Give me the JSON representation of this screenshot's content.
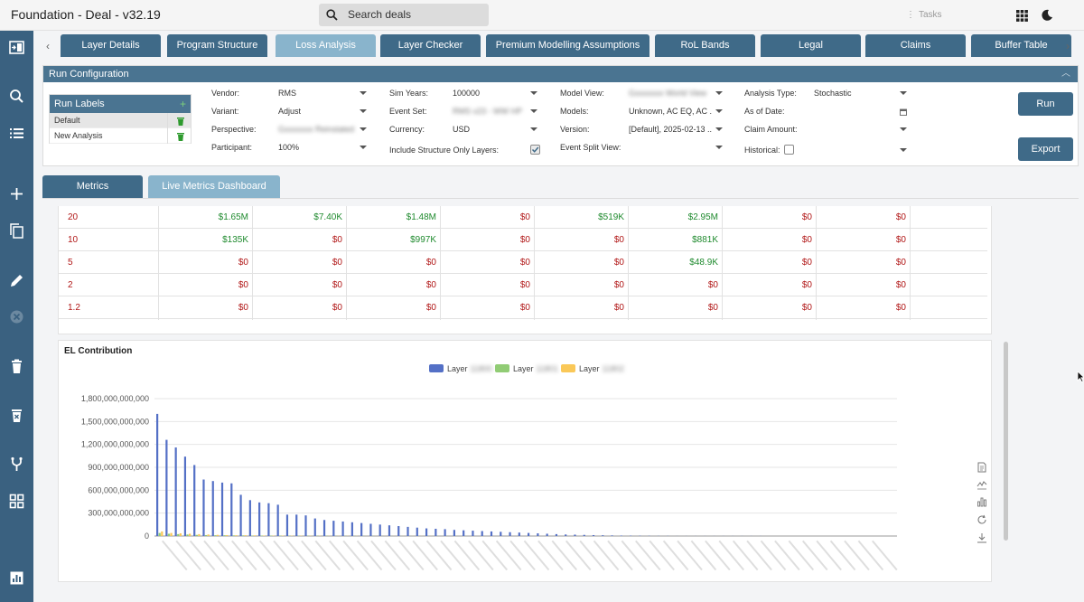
{
  "app": {
    "title": "Foundation - Deal - v32.19"
  },
  "search": {
    "placeholder": "Search deals"
  },
  "topbar": {
    "tasks_label": "Tasks"
  },
  "tabs": [
    {
      "label": "Layer Details",
      "active": false
    },
    {
      "label": "Program Structure",
      "active": false
    },
    {
      "label": "Loss Analysis",
      "active": true
    },
    {
      "label": "Layer Checker",
      "active": false
    },
    {
      "label": "Premium Modelling Assumptions",
      "active": false
    },
    {
      "label": "RoL Bands",
      "active": false
    },
    {
      "label": "Legal",
      "active": false
    },
    {
      "label": "Claims",
      "active": false
    },
    {
      "label": "Buffer Table",
      "active": false
    }
  ],
  "run_config": {
    "title": "Run Configuration",
    "run_labels": {
      "title": "Run Labels",
      "items": [
        {
          "label": "Default",
          "selected": true
        },
        {
          "label": "New Analysis",
          "selected": false
        }
      ]
    },
    "fields": {
      "vendor": {
        "label": "Vendor:",
        "value": "RMS"
      },
      "variant": {
        "label": "Variant:",
        "value": "Adjust"
      },
      "perspective": {
        "label": "Perspective:",
        "value": "Gxxxxxxx Reinstated"
      },
      "participant": {
        "label": "Participant:",
        "value": "100%"
      },
      "sim_years": {
        "label": "Sim Years:",
        "value": "100000"
      },
      "event_set": {
        "label": "Event Set:",
        "value": "RMS v23 - WW HP ..."
      },
      "currency": {
        "label": "Currency:",
        "value": "USD"
      },
      "include_structure": {
        "label": "Include Structure Only Layers:",
        "checked": true
      },
      "model_view": {
        "label": "Model View:",
        "value": "Gxxxxxxx World View"
      },
      "models": {
        "label": "Models:",
        "value": "Unknown, AC EQ, AC ..."
      },
      "version": {
        "label": "Version:",
        "value": "[Default], 2025-02-13 ..."
      },
      "event_split_view": {
        "label": "Event Split View:",
        "value": ""
      },
      "analysis_type": {
        "label": "Analysis Type:",
        "value": "Stochastic"
      },
      "as_of_date": {
        "label": "As of Date:",
        "value": ""
      },
      "claim_amount": {
        "label": "Claim Amount:",
        "value": ""
      },
      "historical": {
        "label": "Historical:",
        "checked": false
      }
    },
    "run_button": "Run",
    "export_button": "Export"
  },
  "subtabs": [
    {
      "label": "Metrics",
      "active": false
    },
    {
      "label": "Live Metrics Dashboard",
      "active": true
    }
  ],
  "colors": {
    "positive": "#1f8a2e",
    "negative": "#b01515",
    "accent": "#3f6a88",
    "accent_active": "#89b4cc"
  },
  "table": {
    "rows": [
      {
        "label": "20",
        "values": [
          "$1.65M",
          "$7.40K",
          "$1.48M",
          "$0",
          "$519K",
          "$2.95M",
          "$0",
          "$0"
        ],
        "positive": [
          true,
          true,
          true,
          false,
          true,
          true,
          false,
          false
        ]
      },
      {
        "label": "10",
        "values": [
          "$135K",
          "$0",
          "$997K",
          "$0",
          "$0",
          "$881K",
          "$0",
          "$0"
        ],
        "positive": [
          true,
          false,
          true,
          false,
          false,
          true,
          false,
          false
        ]
      },
      {
        "label": "5",
        "values": [
          "$0",
          "$0",
          "$0",
          "$0",
          "$0",
          "$48.9K",
          "$0",
          "$0"
        ],
        "positive": [
          false,
          false,
          false,
          false,
          false,
          true,
          false,
          false
        ]
      },
      {
        "label": "2",
        "values": [
          "$0",
          "$0",
          "$0",
          "$0",
          "$0",
          "$0",
          "$0",
          "$0"
        ],
        "positive": [
          false,
          false,
          false,
          false,
          false,
          false,
          false,
          false
        ]
      },
      {
        "label": "1.2",
        "values": [
          "$0",
          "$0",
          "$0",
          "$0",
          "$0",
          "$0",
          "$0",
          "$0"
        ],
        "positive": [
          false,
          false,
          false,
          false,
          false,
          false,
          false,
          false
        ]
      }
    ]
  },
  "chart_data": {
    "type": "bar",
    "title": "EL Contribution",
    "legend_position": "top",
    "ylim": [
      0,
      1800000000000
    ],
    "yticks": [
      0,
      300000000000,
      600000000000,
      900000000000,
      1200000000000,
      1500000000000,
      1800000000000
    ],
    "ytick_labels": [
      "0",
      "300,000,000,000",
      "600,000,000,000",
      "900,000,000,000",
      "1,200,000,000,000",
      "1,500,000,000,000",
      "1,800,000,000,000"
    ],
    "grid": true,
    "series": [
      {
        "name": "Layer 11800",
        "color": "#5470c6",
        "values": [
          1600,
          1260,
          1160,
          1040,
          930,
          740,
          720,
          700,
          690,
          540,
          470,
          440,
          430,
          410,
          280,
          280,
          270,
          230,
          210,
          200,
          190,
          180,
          170,
          160,
          150,
          140,
          130,
          120,
          110,
          100,
          95,
          90,
          80,
          75,
          70,
          65,
          60,
          55,
          50,
          45,
          40,
          35,
          30,
          25,
          20,
          18,
          15,
          12,
          10,
          8,
          6,
          5,
          4,
          3,
          2,
          2,
          1,
          1,
          1,
          1,
          1,
          1,
          1,
          1,
          1,
          1,
          0,
          0,
          0,
          0,
          0,
          0,
          0,
          0,
          0,
          0,
          0,
          0,
          0,
          0
        ]
      },
      {
        "name": "Layer 11801",
        "color": "#91cc75",
        "values": [
          40,
          30,
          25,
          20,
          15,
          12,
          10,
          10,
          8,
          8,
          6,
          6,
          5,
          5,
          4,
          4,
          3,
          3,
          3,
          2,
          2,
          2,
          2,
          2,
          1,
          1,
          1,
          1,
          1,
          1,
          1,
          1,
          1,
          1,
          0,
          0,
          0,
          0,
          0,
          0,
          0,
          0,
          0,
          0,
          0,
          0,
          0,
          0,
          0,
          0,
          0,
          0,
          0,
          0,
          0,
          0,
          0,
          0,
          0,
          0,
          0,
          0,
          0,
          0,
          0,
          0,
          0,
          0,
          0,
          0,
          0,
          0,
          0,
          0,
          0,
          0,
          0,
          0,
          0,
          0
        ]
      },
      {
        "name": "Layer 11802",
        "color": "#fac858",
        "values": [
          60,
          40,
          35,
          30,
          25,
          20,
          15,
          12,
          10,
          10,
          8,
          6,
          5,
          5,
          4,
          4,
          3,
          3,
          2,
          2,
          2,
          2,
          1,
          1,
          1,
          1,
          1,
          1,
          1,
          1,
          0,
          0,
          0,
          0,
          0,
          0,
          0,
          0,
          0,
          0,
          0,
          0,
          0,
          0,
          0,
          0,
          0,
          0,
          0,
          0,
          0,
          0,
          0,
          0,
          0,
          0,
          0,
          0,
          0,
          0,
          0,
          0,
          0,
          0,
          0,
          0,
          0,
          0,
          0,
          0,
          0,
          0,
          0,
          0,
          0,
          0,
          0,
          0,
          0,
          0
        ]
      }
    ],
    "value_unit_multiplier": 1000000000
  }
}
